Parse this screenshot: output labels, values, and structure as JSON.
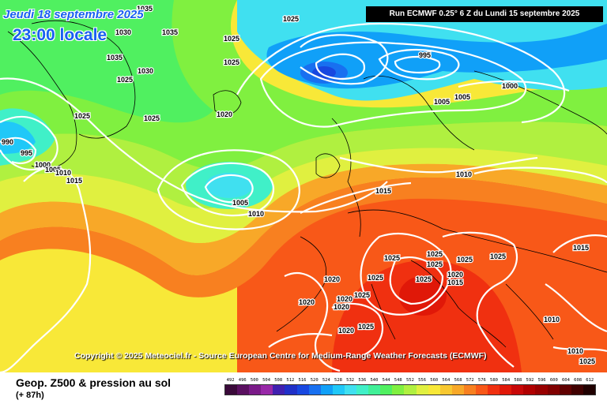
{
  "header": {
    "date": "Jeudi 18 septembre 2025",
    "time": "23:00 locale",
    "run": "Run ECMWF 0.25° 6 Z du Lundi 15 septembre 2025"
  },
  "copyright": "Copyright © 2025 Meteociel.fr - Source European Centre for Medium-Range Weather Forecasts (ECMWF)",
  "footer": {
    "title": "Geop. Z500 & pression au sol",
    "subtitle": "(+ 87h)"
  },
  "legend": {
    "values": [
      "492",
      "496",
      "500",
      "504",
      "508",
      "512",
      "516",
      "520",
      "524",
      "528",
      "532",
      "536",
      "540",
      "544",
      "548",
      "552",
      "556",
      "560",
      "564",
      "568",
      "572",
      "576",
      "580",
      "584",
      "588",
      "592",
      "596",
      "600",
      "604",
      "608",
      "612"
    ],
    "colors": [
      "#3a0a3a",
      "#5a1060",
      "#7a1a88",
      "#9828a8",
      "#4020b0",
      "#2030c8",
      "#1848e0",
      "#1870f0",
      "#10a0f8",
      "#20c8f8",
      "#40e0f0",
      "#40f0c8",
      "#40f098",
      "#50f060",
      "#80f040",
      "#b0f040",
      "#e0f040",
      "#f8e838",
      "#f8c830",
      "#f8a828",
      "#f88020",
      "#f85818",
      "#f03010",
      "#e01808",
      "#c80808",
      "#b00000",
      "#980000",
      "#800000",
      "#600000",
      "#400000",
      "#200000"
    ]
  },
  "isobars": [
    {
      "id": "iso-1",
      "value": "1035"
    },
    {
      "id": "iso-2",
      "value": "1030"
    },
    {
      "id": "iso-3",
      "value": "1035"
    },
    {
      "id": "iso-4",
      "value": "1035"
    },
    {
      "id": "iso-5",
      "value": "1030"
    },
    {
      "id": "iso-6",
      "value": "1025"
    },
    {
      "id": "iso-7",
      "value": "1025"
    },
    {
      "id": "iso-8",
      "value": "1025"
    },
    {
      "id": "iso-9",
      "value": "1025"
    },
    {
      "id": "iso-10",
      "value": "1025"
    },
    {
      "id": "iso-11",
      "value": "1020"
    },
    {
      "id": "iso-12",
      "value": "995"
    },
    {
      "id": "iso-13",
      "value": "1000"
    },
    {
      "id": "iso-14",
      "value": "1005"
    },
    {
      "id": "iso-15",
      "value": "1005"
    },
    {
      "id": "iso-16",
      "value": "1010"
    },
    {
      "id": "iso-17",
      "value": "1015"
    },
    {
      "id": "iso-18",
      "value": "1005"
    },
    {
      "id": "iso-19",
      "value": "1010"
    },
    {
      "id": "iso-20",
      "value": "990"
    },
    {
      "id": "iso-21",
      "value": "995"
    },
    {
      "id": "iso-22",
      "value": "1000"
    },
    {
      "id": "iso-23",
      "value": "1005"
    },
    {
      "id": "iso-24",
      "value": "1010"
    },
    {
      "id": "iso-25",
      "value": "1015"
    },
    {
      "id": "iso-26",
      "value": "1025"
    },
    {
      "id": "iso-27",
      "value": "1025"
    },
    {
      "id": "iso-28",
      "value": "1025"
    },
    {
      "id": "iso-29",
      "value": "1025"
    },
    {
      "id": "iso-30",
      "value": "1025"
    },
    {
      "id": "iso-31",
      "value": "1025"
    },
    {
      "id": "iso-32",
      "value": "1025"
    },
    {
      "id": "iso-33",
      "value": "1025"
    },
    {
      "id": "iso-34",
      "value": "1020"
    },
    {
      "id": "iso-35",
      "value": "1020"
    },
    {
      "id": "iso-36",
      "value": "1020"
    },
    {
      "id": "iso-37",
      "value": "1020"
    },
    {
      "id": "iso-38",
      "value": "1020"
    },
    {
      "id": "iso-39",
      "value": "1020"
    },
    {
      "id": "iso-40",
      "value": "1025"
    },
    {
      "id": "iso-41",
      "value": "1025"
    },
    {
      "id": "iso-42",
      "value": "1015"
    },
    {
      "id": "iso-43",
      "value": "1015"
    },
    {
      "id": "iso-44",
      "value": "1010"
    },
    {
      "id": "iso-45",
      "value": "1010"
    },
    {
      "id": "iso-46",
      "value": "1025"
    }
  ]
}
